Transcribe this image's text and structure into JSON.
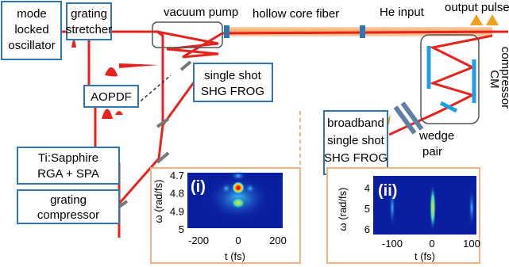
{
  "boxes": [
    {
      "lines": [
        "mode",
        "locked",
        "oscillator"
      ]
    },
    {
      "lines": [
        "grating",
        "stretcher"
      ]
    },
    {
      "lines": [
        "AOPDF"
      ]
    },
    {
      "lines": [
        "Ti:Sapphire",
        "RGA + SPA"
      ]
    },
    {
      "lines": [
        "grating",
        "compressor"
      ]
    },
    {
      "lines": [
        "single shot",
        "SHG FROG"
      ]
    },
    {
      "lines": [
        "broadband",
        "single shot",
        "SHG FROG"
      ]
    }
  ],
  "labels": {
    "vacuum_pump": "vacuum pump",
    "fiber": "hollow core fiber",
    "he_input": "He input",
    "output_pulse": "output pulse",
    "cm": "CM",
    "compressor": "compressor",
    "wedge": [
      "wedge",
      "pair"
    ]
  },
  "insets": [
    {
      "tag": "(i)",
      "ylabel": "ω (rad/fs)",
      "xlabel": "t (fs)",
      "yticks": [
        "4.7",
        "4.8",
        "4.9",
        "5"
      ],
      "xticks": [
        "-200",
        "0",
        "200"
      ]
    },
    {
      "tag": "(ii)",
      "ylabel": "ω (rad/fs)",
      "xlabel": "t (fs)",
      "yticks": [
        "4",
        "5",
        "6"
      ],
      "xticks": [
        "-100",
        "0",
        "100"
      ]
    }
  ]
}
